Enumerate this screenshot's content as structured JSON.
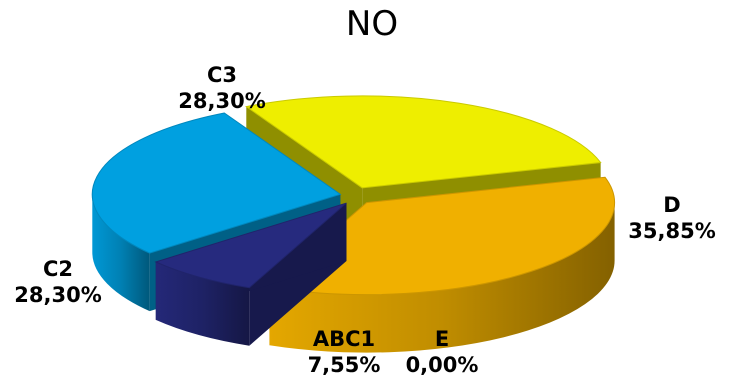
{
  "chart_data": {
    "type": "pie",
    "title": "NO",
    "style": "3d-exploded",
    "legend": "none",
    "slices": [
      {
        "category": "D",
        "label": "35,85%",
        "value": 35.85,
        "color": "#F0B000"
      },
      {
        "category": "E",
        "label": "0,00%",
        "value": 0.0,
        "color": "#2E8B57"
      },
      {
        "category": "ABC1",
        "label": "7,55%",
        "value": 7.55,
        "color": "#262A7E"
      },
      {
        "category": "C2",
        "label": "28,30%",
        "value": 28.3,
        "color": "#00A0E0"
      },
      {
        "category": "C3",
        "label": "28,30%",
        "value": 28.3,
        "color": "#EEEE00"
      }
    ]
  }
}
